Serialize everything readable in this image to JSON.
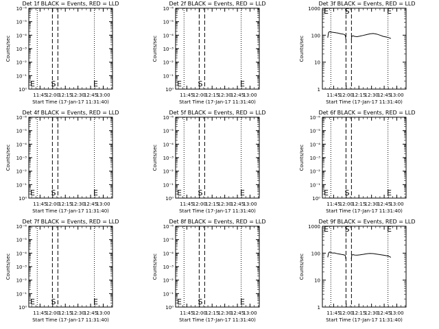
{
  "figure": {
    "xlabel": "Start Time (17-Jan-17 11:31:40)",
    "ylabel": "Counts/sec",
    "xtick_labels": [
      "11:45",
      "12:00",
      "12:15",
      "12:30",
      "12:45",
      "13:00"
    ],
    "markers": {
      "S": "S",
      "E": "E"
    }
  },
  "chart_data": [
    {
      "type": "line",
      "title": "Det 1f BLACK = Events, RED = LLD",
      "yscale": "log",
      "y_tick_labels": [
        "10⁰",
        "10⁻¹",
        "10⁻²",
        "10⁻³",
        "10⁻⁴",
        "10⁻⁵",
        "10⁻⁶"
      ],
      "series": [],
      "color": "#000000"
    },
    {
      "type": "line",
      "title": "Det 2f BLACK = Events, RED = LLD",
      "yscale": "log",
      "y_tick_labels": [
        "10⁰",
        "10⁻¹",
        "10⁻²",
        "10⁻³",
        "10⁻⁴",
        "10⁻⁵",
        "10⁻⁶"
      ],
      "series": [],
      "color": "#000000"
    },
    {
      "type": "line",
      "title": "Det 3f BLACK = Events, RED = LLD",
      "yscale": "log",
      "y_tick_labels": [
        "1",
        "10",
        "100",
        "1000"
      ],
      "ylim": [
        1,
        1000
      ],
      "series": [
        {
          "x": [
            "11:38",
            "11:39",
            "11:40",
            "11:42",
            "11:44",
            "11:46",
            "11:48",
            "11:50",
            "11:52",
            "11:54",
            "11:56",
            "11:58",
            "11:59",
            "11:59:30"
          ],
          "y": [
            80,
            125,
            135,
            130,
            128,
            125,
            122,
            120,
            115,
            112,
            110,
            105,
            95,
            70
          ]
        },
        {
          "x": [
            "12:06",
            "12:06:30",
            "12:08",
            "12:10",
            "12:13",
            "12:16",
            "12:20",
            "12:24",
            "12:28",
            "12:32",
            "12:36",
            "12:40",
            "12:44",
            "12:48",
            "12:50",
            "12:53"
          ],
          "y": [
            70,
            90,
            95,
            90,
            88,
            92,
            98,
            105,
            112,
            115,
            110,
            100,
            90,
            85,
            82,
            75
          ]
        }
      ],
      "color": "#000000"
    },
    {
      "type": "line",
      "title": "Det 4f BLACK = Events, RED = LLD",
      "yscale": "log",
      "y_tick_labels": [
        "10⁰",
        "10⁻¹",
        "10⁻²",
        "10⁻³",
        "10⁻⁴",
        "10⁻⁵",
        "10⁻⁶"
      ],
      "series": [],
      "color": "#000000"
    },
    {
      "type": "line",
      "title": "Det 5f BLACK = Events, RED = LLD",
      "yscale": "log",
      "y_tick_labels": [
        "10⁰",
        "10⁻¹",
        "10⁻²",
        "10⁻³",
        "10⁻⁴",
        "10⁻⁵",
        "10⁻⁶"
      ],
      "series": [],
      "color": "#000000"
    },
    {
      "type": "line",
      "title": "Det 6f BLACK = Events, RED = LLD",
      "yscale": "log",
      "y_tick_labels": [
        "10⁰",
        "10⁻¹",
        "10⁻²",
        "10⁻³",
        "10⁻⁴",
        "10⁻⁵",
        "10⁻⁶"
      ],
      "series": [],
      "color": "#000000"
    },
    {
      "type": "line",
      "title": "Det 7f BLACK = Events, RED = LLD",
      "yscale": "log",
      "y_tick_labels": [
        "10⁰",
        "10⁻¹",
        "10⁻²",
        "10⁻³",
        "10⁻⁴",
        "10⁻⁵",
        "10⁻⁶"
      ],
      "series": [],
      "color": "#000000"
    },
    {
      "type": "line",
      "title": "Det 8f BLACK = Events, RED = LLD",
      "yscale": "log",
      "y_tick_labels": [
        "10⁰",
        "10⁻¹",
        "10⁻²",
        "10⁻³",
        "10⁻⁴",
        "10⁻⁵",
        "10⁻⁶"
      ],
      "series": [],
      "color": "#000000"
    },
    {
      "type": "line",
      "title": "Det 9f BLACK = Events, RED = LLD",
      "yscale": "log",
      "y_tick_labels": [
        "1",
        "10",
        "100",
        "1000"
      ],
      "ylim": [
        1,
        1000
      ],
      "series": [
        {
          "x": [
            "11:38",
            "11:39",
            "11:40",
            "11:42",
            "11:44",
            "11:46",
            "11:48",
            "11:50",
            "11:52",
            "11:54",
            "11:56",
            "11:58",
            "11:59",
            "11:59:30"
          ],
          "y": [
            70,
            100,
            110,
            105,
            100,
            102,
            98,
            95,
            93,
            90,
            88,
            85,
            80,
            60
          ]
        },
        {
          "x": [
            "12:06",
            "12:06:30",
            "12:08",
            "12:10",
            "12:13",
            "12:16",
            "12:20",
            "12:24",
            "12:28",
            "12:32",
            "12:36",
            "12:40",
            "12:44",
            "12:48",
            "12:50",
            "12:53"
          ],
          "y": [
            60,
            85,
            88,
            85,
            84,
            86,
            90,
            95,
            98,
            96,
            92,
            88,
            84,
            80,
            78,
            70
          ]
        }
      ],
      "color": "#000000"
    }
  ]
}
